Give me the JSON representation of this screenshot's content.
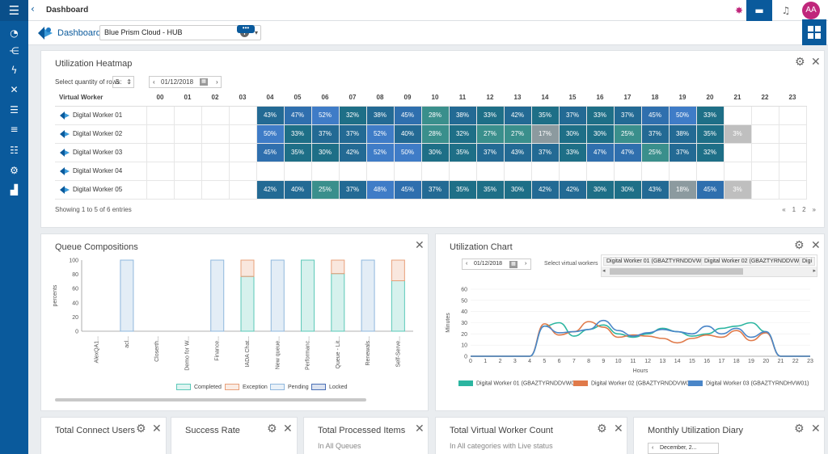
{
  "topbar": {
    "title": "Dashboard",
    "avatar_initials": "AA"
  },
  "dashboard": {
    "label": "Dashboard:",
    "selected": "Blue Prism Cloud - HUB",
    "more_label": "•••"
  },
  "heatmap": {
    "title": "Utilization Heatmap",
    "rows_label": "Select quantity of rows:",
    "rows_value": "5",
    "date": "01/12/2018",
    "column_header": "Virtual Worker",
    "hours": [
      "00",
      "01",
      "02",
      "03",
      "04",
      "05",
      "06",
      "07",
      "08",
      "09",
      "10",
      "11",
      "12",
      "13",
      "14",
      "15",
      "16",
      "17",
      "18",
      "19",
      "20",
      "21",
      "22",
      "23"
    ],
    "rows": [
      {
        "name": "Digital Worker 01",
        "cells": [
          "",
          "",
          "",
          "",
          "43%",
          "47%",
          "52%",
          "32%",
          "38%",
          "45%",
          "28%",
          "38%",
          "33%",
          "42%",
          "35%",
          "37%",
          "33%",
          "37%",
          "45%",
          "50%",
          "33%",
          "",
          "",
          ""
        ]
      },
      {
        "name": "Digital Worker 02",
        "cells": [
          "",
          "",
          "",
          "",
          "50%",
          "33%",
          "37%",
          "37%",
          "52%",
          "40%",
          "28%",
          "32%",
          "27%",
          "27%",
          "17%",
          "30%",
          "30%",
          "25%",
          "37%",
          "38%",
          "35%",
          "3%",
          "",
          ""
        ]
      },
      {
        "name": "Digital Worker 03",
        "cells": [
          "",
          "",
          "",
          "",
          "45%",
          "35%",
          "30%",
          "42%",
          "52%",
          "50%",
          "30%",
          "35%",
          "37%",
          "43%",
          "37%",
          "33%",
          "47%",
          "47%",
          "25%",
          "37%",
          "32%",
          "",
          "",
          ""
        ]
      },
      {
        "name": "Digital Worker 04",
        "cells": [
          "",
          "",
          "",
          "",
          "",
          "",
          "",
          "",
          "",
          "",
          "",
          "",
          "",
          "",
          "",
          "",
          "",
          "",
          "",
          "",
          "",
          "",
          "",
          ""
        ]
      },
      {
        "name": "Digital Worker 05",
        "cells": [
          "",
          "",
          "",
          "",
          "42%",
          "40%",
          "25%",
          "37%",
          "48%",
          "45%",
          "37%",
          "35%",
          "35%",
          "30%",
          "42%",
          "42%",
          "30%",
          "30%",
          "43%",
          "18%",
          "45%",
          "3%",
          "",
          ""
        ]
      }
    ],
    "showing": "Showing 1 to 5 of 6 entries",
    "pager": [
      "«",
      "1",
      "2",
      "»"
    ]
  },
  "queue": {
    "title": "Queue Compositions",
    "legend": [
      {
        "name": "Completed",
        "color": "#5bc8b8"
      },
      {
        "name": "Exception",
        "color": "#e8a07a"
      },
      {
        "name": "Pending",
        "color": "#8fb7dd"
      },
      {
        "name": "Locked",
        "color": "#4a6fb5"
      }
    ]
  },
  "utilization": {
    "title": "Utilization Chart",
    "date": "01/12/2018",
    "select_label": "Select virtual workers",
    "workers": [
      "Digital Worker 01 (GBAZTYRNDDVW01)",
      "Digital Worker 02 (GBAZTYRNDDVW02)",
      "Digi"
    ],
    "legend": [
      {
        "name": "Digital Worker 01 (GBAZTYRNDDVW01)",
        "color": "#2bb5a0"
      },
      {
        "name": "Digital Worker 02 (GBAZTYRNDDVW02)",
        "color": "#e07a4a"
      },
      {
        "name": "Digital Worker 03 (GBAZTYRNDHVW01)",
        "color": "#4a86c8"
      }
    ]
  },
  "bottom": {
    "connect_users": {
      "title": "Total Connect Users"
    },
    "success_rate": {
      "title": "Success Rate"
    },
    "processed": {
      "title": "Total Processed Items",
      "subtitle": "In All Queues"
    },
    "vw_count": {
      "title": "Total Virtual Worker Count",
      "subtitle": "In All categories with Live status"
    },
    "diary": {
      "title": "Monthly Utilization Diary",
      "date": "December, 2..."
    }
  },
  "chart_data": [
    {
      "type": "bar",
      "title": "Queue Compositions",
      "ylabel": "percents",
      "ylim": [
        0,
        100
      ],
      "categories": [
        "AlexQA1...",
        "acl...",
        "Closerth...",
        "Demo for W...",
        "Finance...",
        "IADA Chat...",
        "New queue...",
        "Performanc...",
        "Queue - Lit...",
        "Renewals...",
        "Self-Serve..."
      ],
      "series": [
        {
          "name": "Completed",
          "values": [
            0,
            0,
            0,
            0,
            0,
            77,
            0,
            100,
            81,
            0,
            71
          ]
        },
        {
          "name": "Exception",
          "values": [
            0,
            0,
            0,
            0,
            0,
            23,
            0,
            0,
            19,
            0,
            29
          ]
        },
        {
          "name": "Pending",
          "values": [
            0,
            100,
            0,
            0,
            100,
            0,
            100,
            0,
            0,
            100,
            0
          ]
        },
        {
          "name": "Locked",
          "values": [
            0,
            0,
            0,
            0,
            0,
            0,
            0,
            0,
            0,
            0,
            0
          ]
        }
      ]
    },
    {
      "type": "line",
      "title": "Utilization Chart",
      "xlabel": "Hours",
      "ylabel": "Minutes",
      "ylim": [
        0,
        60
      ],
      "x": [
        0,
        1,
        2,
        3,
        4,
        5,
        6,
        7,
        8,
        9,
        10,
        11,
        12,
        13,
        14,
        15,
        16,
        17,
        18,
        19,
        20,
        21,
        22,
        23
      ],
      "series": [
        {
          "name": "Digital Worker 01 (GBAZTYRNDDVW01)",
          "values": [
            0,
            0,
            0,
            0,
            0,
            27,
            30,
            18,
            24,
            28,
            20,
            17,
            20,
            25,
            22,
            18,
            20,
            25,
            27,
            30,
            22,
            0,
            0,
            0
          ]
        },
        {
          "name": "Digital Worker 02 (GBAZTYRNDDVW02)",
          "values": [
            0,
            0,
            0,
            0,
            0,
            29,
            19,
            22,
            31,
            26,
            17,
            19,
            18,
            16,
            12,
            16,
            19,
            17,
            23,
            14,
            21,
            0,
            0,
            0
          ]
        },
        {
          "name": "Digital Worker 03 (GBAZTYRNDHVW01)",
          "values": [
            0,
            0,
            0,
            0,
            0,
            27,
            21,
            22,
            24,
            32,
            23,
            18,
            21,
            24,
            22,
            20,
            27,
            20,
            25,
            17,
            22,
            0,
            0,
            0
          ]
        }
      ]
    }
  ]
}
